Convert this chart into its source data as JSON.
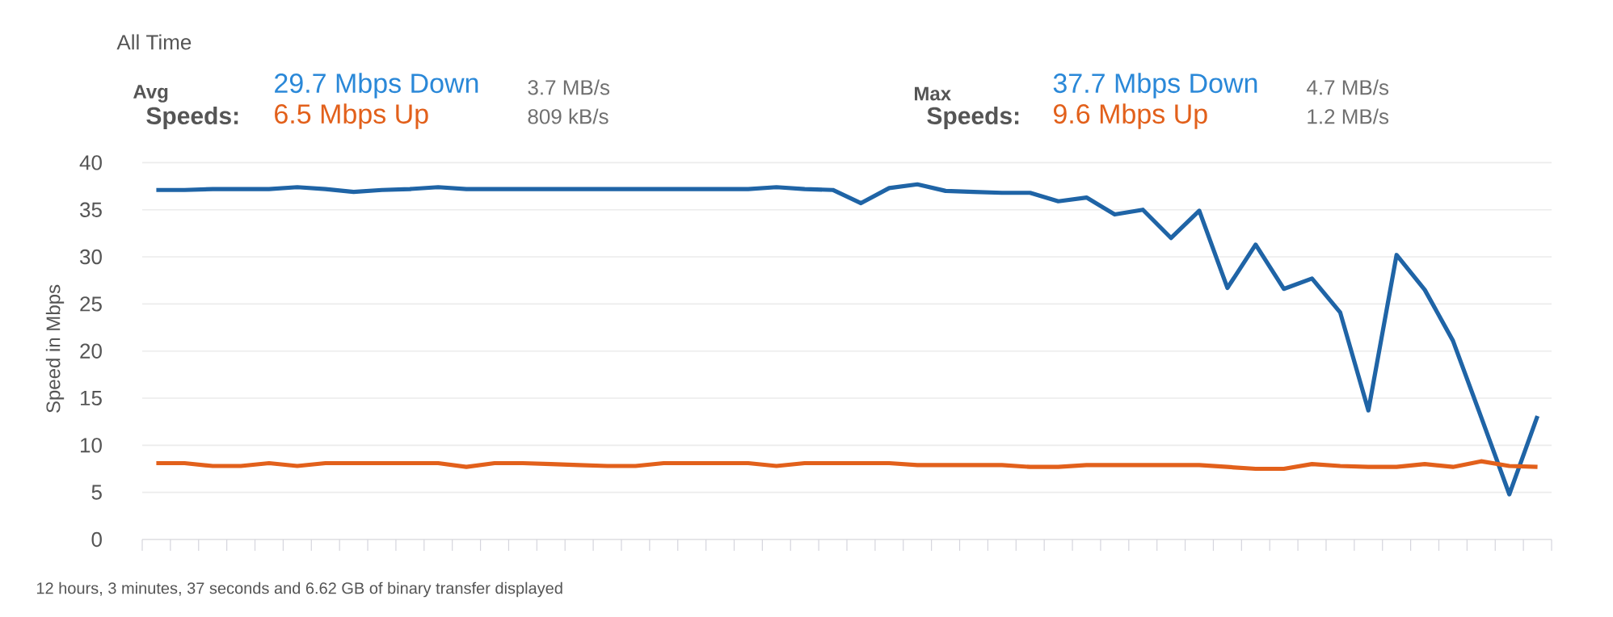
{
  "chart_data": {
    "type": "line",
    "title": "All Time",
    "ylabel": "Speed in Mbps",
    "annotations": [
      "Avg",
      "Speeds:",
      "29.7 Mbps Down",
      "3.7 MB/s",
      "6.5 Mbps Up",
      "809 kB/s",
      "Max",
      "Speeds:",
      "37.7 Mbps Down",
      "4.7 MB/s",
      "9.6 Mbps Up",
      "1.2 MB/s",
      "12 hours, 3 minutes, 37 seconds and 6.62 GB of binary transfer displayed"
    ],
    "categories": [
      null,
      null,
      null,
      null,
      null,
      null,
      null,
      null,
      null,
      null,
      null,
      null,
      null,
      null,
      null,
      null,
      null,
      null,
      null,
      null,
      null,
      null,
      null,
      null,
      null,
      null,
      null,
      null,
      null,
      null,
      null,
      null,
      null,
      null,
      null,
      null,
      null,
      null,
      null,
      null,
      null,
      null,
      null,
      null,
      null,
      null,
      null,
      null,
      null,
      null
    ],
    "series": [
      {
        "color": "#1f64a6",
        "values": [
          37.1,
          37.1,
          37.2,
          37.2,
          37.2,
          37.4,
          37.2,
          36.9,
          37.1,
          37.2,
          37.4,
          37.2,
          37.2,
          37.2,
          37.2,
          37.2,
          37.2,
          37.2,
          37.2,
          37.2,
          37.2,
          37.2,
          37.4,
          37.2,
          37.1,
          35.7,
          37.3,
          37.7,
          37.0,
          36.9,
          36.8,
          36.8,
          35.9,
          36.3,
          34.5,
          35.0,
          32.0,
          34.9,
          26.7,
          31.3,
          26.6,
          27.7,
          24.1,
          13.7,
          30.2,
          26.5,
          21.1,
          13.0,
          4.8,
          13.1
        ]
      },
      {
        "color": "#e2601b",
        "values": [
          8.1,
          8.1,
          7.8,
          7.8,
          8.1,
          7.8,
          8.1,
          8.1,
          8.1,
          8.1,
          8.1,
          7.7,
          8.1,
          8.1,
          8.0,
          7.9,
          7.8,
          7.8,
          8.1,
          8.1,
          8.1,
          8.1,
          7.8,
          8.1,
          8.1,
          8.1,
          8.1,
          7.9,
          7.9,
          7.9,
          7.9,
          7.7,
          7.7,
          7.9,
          7.9,
          7.9,
          7.9,
          7.9,
          7.7,
          7.5,
          7.5,
          8.0,
          7.8,
          7.7,
          7.7,
          8.0,
          7.7,
          8.3,
          7.8,
          7.7
        ]
      }
    ],
    "ylim": [
      0,
      40
    ],
    "yticks": [
      0,
      5,
      10,
      15,
      20,
      25,
      30,
      35,
      40
    ],
    "grid": "y",
    "marker": "none",
    "line_style": "solid"
  }
}
